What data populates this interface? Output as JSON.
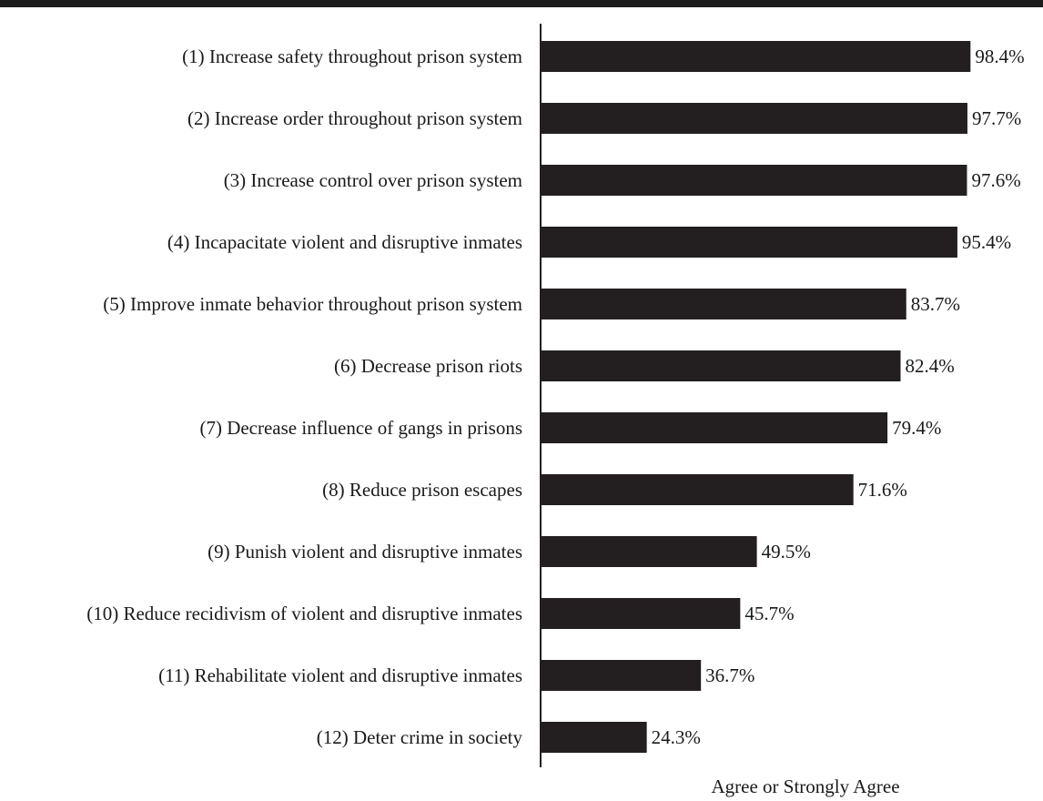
{
  "chart_data": {
    "type": "bar",
    "orientation": "horizontal",
    "categories": [
      "(1) Increase safety throughout prison system",
      "(2) Increase order throughout prison system",
      "(3) Increase control over prison system",
      "(4) Incapacitate violent and disruptive inmates",
      "(5) Improve inmate behavior throughout prison system",
      "(6) Decrease prison riots",
      "(7) Decrease influence of gangs in prisons",
      "(8) Reduce prison escapes",
      "(9) Punish violent and disruptive inmates",
      "(10) Reduce recidivism of violent and disruptive inmates",
      "(11) Rehabilitate violent and disruptive inmates",
      "(12) Deter crime in society"
    ],
    "values": [
      98.4,
      97.7,
      97.6,
      95.4,
      83.7,
      82.4,
      79.4,
      71.6,
      49.5,
      45.7,
      36.7,
      24.3
    ],
    "value_labels": [
      "98.4%",
      "97.7%",
      "97.6%",
      "95.4%",
      "83.7%",
      "82.4%",
      "79.4%",
      "71.6%",
      "49.5%",
      "45.7%",
      "36.7%",
      "24.3%"
    ],
    "xlabel": "Agree or Strongly Agree",
    "xlim": [
      0,
      100
    ],
    "grid": false,
    "bar_color": "#231f20"
  }
}
